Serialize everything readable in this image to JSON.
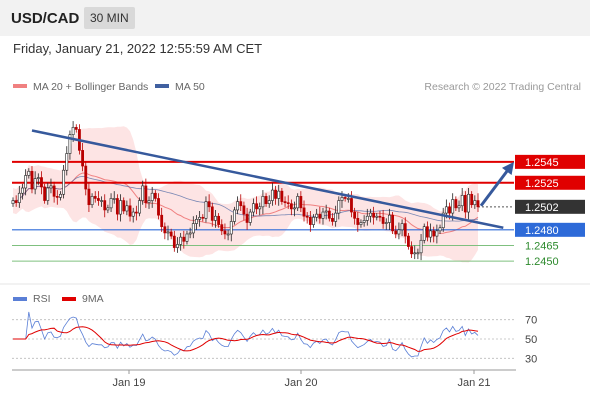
{
  "header": {
    "symbol": "USD/CAD",
    "timeframe": "30 MIN"
  },
  "datetime": "Friday, January 21, 2022 12:55:59 AM CET",
  "legend": {
    "ma20_bb": "MA 20 + Bollinger Bands",
    "ma50": "MA 50",
    "credit": "Research © 2022 Trading Central",
    "rsi": "RSI",
    "rsi_ma": "9MA"
  },
  "colors": {
    "bull": "#d0d0d0",
    "bear": "#b80000",
    "ma20": "#f08080",
    "ma50": "#4060a0",
    "band": "#fde4e4",
    "resistance": "#e00000",
    "support": "#2d6ad8",
    "green": "#2d8a2d",
    "last": "#333333",
    "trend": "#36599c",
    "rsi": "#5a7fd6",
    "rsi_ma": "#e00000"
  },
  "chart_data": [
    {
      "type": "candlestick",
      "title": "USD/CAD 30 MIN",
      "x_ticks": [
        "Jan 19",
        "Jan 20",
        "Jan 21"
      ],
      "ylim": [
        1.2432,
        1.2608
      ],
      "price_levels": [
        {
          "value": 1.2545,
          "label": "1.2545",
          "style": "resistance"
        },
        {
          "value": 1.2525,
          "label": "1.2525",
          "style": "resistance"
        },
        {
          "value": 1.2502,
          "label": "1.2502",
          "style": "last"
        },
        {
          "value": 1.248,
          "label": "1.2480",
          "style": "pivot"
        },
        {
          "value": 1.2465,
          "label": "1.2465",
          "style": "support"
        },
        {
          "value": 1.245,
          "label": "1.2450",
          "style": "support"
        }
      ],
      "trendline": {
        "from": {
          "bar": 6,
          "price": 1.2575
        },
        "to": {
          "bar": 155,
          "price": 1.2482
        }
      },
      "projection_arrow": {
        "from_price": 1.2503,
        "to_price": 1.2545
      },
      "close": [
        1.2508,
        1.2506,
        1.2515,
        1.252,
        1.2532,
        1.2536,
        1.2519,
        1.2529,
        1.253,
        1.2521,
        1.2508,
        1.252,
        1.2522,
        1.2512,
        1.2511,
        1.2514,
        1.2537,
        1.2553,
        1.2571,
        1.2578,
        1.2576,
        1.2556,
        1.2541,
        1.2519,
        1.2504,
        1.2512,
        1.251,
        1.2508,
        1.2508,
        1.2499,
        1.2501,
        1.251,
        1.251,
        1.2495,
        1.2508,
        1.2498,
        1.2503,
        1.2493,
        1.2497,
        1.2496,
        1.2508,
        1.2522,
        1.2506,
        1.2508,
        1.2515,
        1.251,
        1.2494,
        1.2483,
        1.2477,
        1.2478,
        1.2474,
        1.2463,
        1.2466,
        1.2473,
        1.2469,
        1.2476,
        1.2477,
        1.2486,
        1.249,
        1.2492,
        1.2491,
        1.2507,
        1.2502,
        1.2489,
        1.2493,
        1.2485,
        1.2479,
        1.2476,
        1.2476,
        1.2488,
        1.2499,
        1.2507,
        1.2503,
        1.2495,
        1.2487,
        1.2497,
        1.2505,
        1.25,
        1.2502,
        1.2512,
        1.2505,
        1.2508,
        1.2518,
        1.251,
        1.2517,
        1.2507,
        1.2506,
        1.2505,
        1.25,
        1.2501,
        1.2512,
        1.2501,
        1.2493,
        1.2492,
        1.2485,
        1.2492,
        1.2495,
        1.2491,
        1.2497,
        1.2498,
        1.2491,
        1.2488,
        1.2496,
        1.2508,
        1.2511,
        1.251,
        1.251,
        1.2497,
        1.2491,
        1.2485,
        1.2487,
        1.2489,
        1.2493,
        1.2496,
        1.2492,
        1.2493,
        1.2492,
        1.2486,
        1.2487,
        1.2494,
        1.2479,
        1.2476,
        1.248,
        1.2486,
        1.2474,
        1.2464,
        1.2457,
        1.2458,
        1.2458,
        1.247,
        1.2483,
        1.2473,
        1.2479,
        1.2474,
        1.2479,
        1.2482,
        1.2496,
        1.2502,
        1.2496,
        1.2509,
        1.2501,
        1.2503,
        1.2513,
        1.2497,
        1.2514,
        1.2504,
        1.2508,
        1.2502
      ],
      "rsi_ylim": [
        20,
        80
      ],
      "rsi_ticks": [
        70,
        50,
        30
      ]
    }
  ]
}
